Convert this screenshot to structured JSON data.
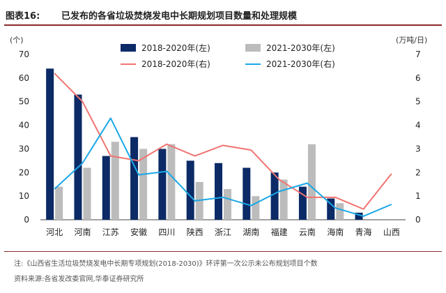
{
  "header": {
    "tag": "图表16:",
    "title": "已发布的各省垃圾焚烧发电中长期规划项目数量和处理规模"
  },
  "chart_data": {
    "type": "bar+line",
    "categories": [
      "河北",
      "河南",
      "江苏",
      "安徽",
      "四川",
      "陕西",
      "浙江",
      "湖南",
      "福建",
      "云南",
      "海南",
      "青海",
      "山西"
    ],
    "left_axis": {
      "unit": "(个)",
      "min": 0,
      "max": 70,
      "ticks": [
        "0",
        "10",
        "20",
        "30",
        "40",
        "50",
        "60",
        "70"
      ]
    },
    "right_axis": {
      "unit": "(万吨/日)",
      "min": 0,
      "max": 7,
      "ticks": [
        "0",
        "1",
        "2",
        "3",
        "4",
        "5",
        "6",
        "7"
      ]
    },
    "bar_series": [
      {
        "name": "2018-2020年(左)",
        "color": "#0b2a66",
        "values": [
          64,
          53,
          27,
          35,
          30,
          25,
          24,
          22,
          20,
          14,
          9,
          3,
          0
        ]
      },
      {
        "name": "2021-2030年(左)",
        "color": "#bcbcbc",
        "values": [
          14,
          22,
          33,
          30,
          32,
          16,
          13,
          10,
          17,
          32,
          7,
          0,
          0
        ]
      }
    ],
    "line_series": [
      {
        "name": "2018-2020年(右)",
        "color": "#f07470",
        "values": [
          6.2,
          5.0,
          2.7,
          2.5,
          3.2,
          2.7,
          3.15,
          2.95,
          1.7,
          0.95,
          0.95,
          0.45,
          1.95
        ]
      },
      {
        "name": "2021-2030年(右)",
        "color": "#1aa7e6",
        "values": [
          1.3,
          2.4,
          4.3,
          1.9,
          2.05,
          0.8,
          0.95,
          0.6,
          1.2,
          1.55,
          0.5,
          0.15,
          0.65
        ]
      }
    ],
    "legend_position": "top"
  },
  "footer": {
    "note": "注:《山西省生活垃圾焚烧发电中长期专项规划(2018-2030)》环评第一次公示未公布规划项目个数",
    "source": "资料来源:各省发改委官网,华泰证券研究所"
  }
}
